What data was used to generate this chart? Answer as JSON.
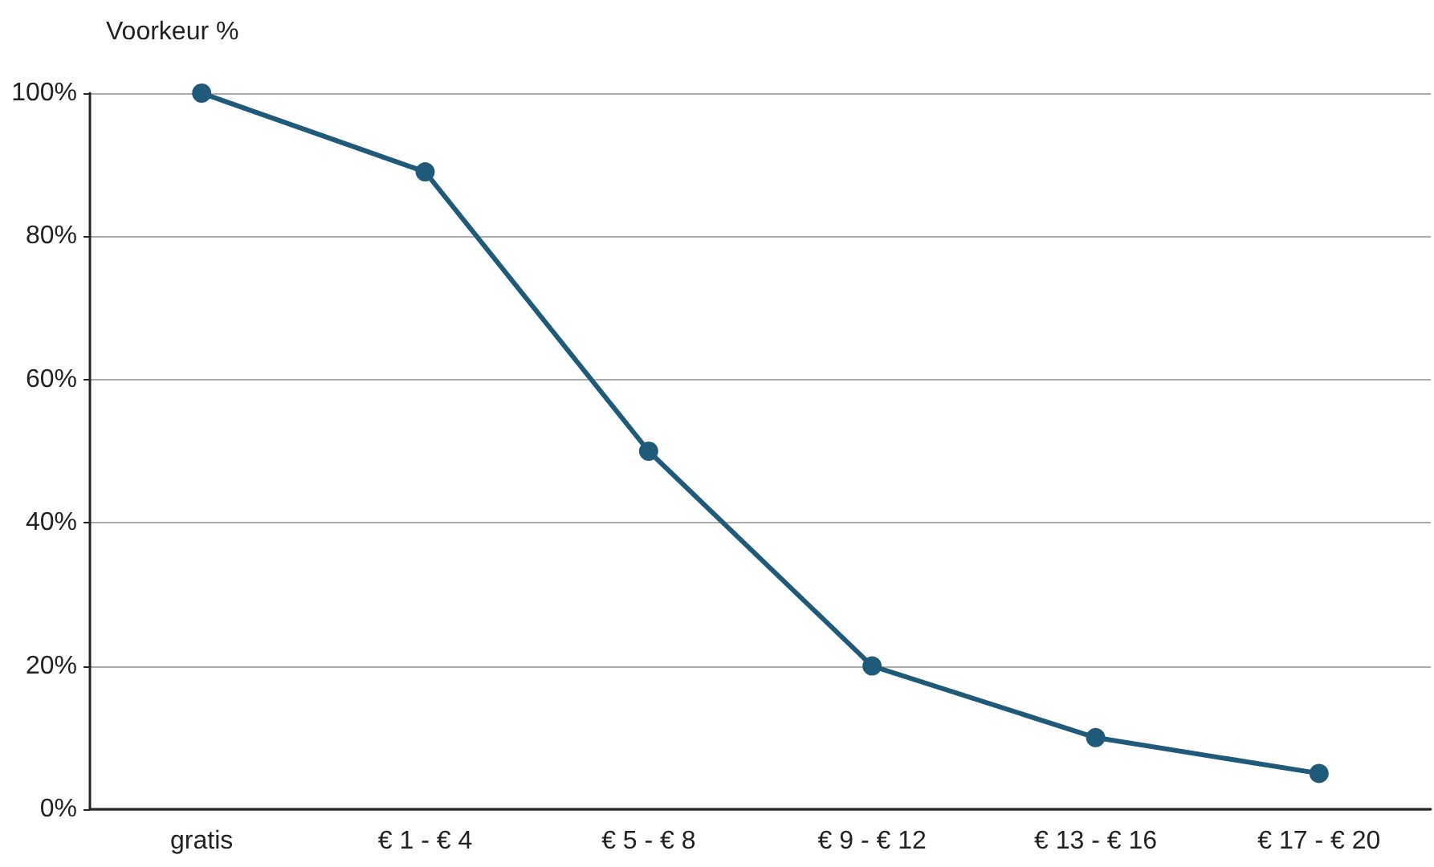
{
  "chart_data": {
    "type": "line",
    "ylabel": "Voorkeur %",
    "categories": [
      "gratis",
      "€ 1 - € 4",
      "€ 5 - € 8",
      "€ 9 - € 12",
      "€ 13 - € 16",
      "€ 17 - € 20"
    ],
    "series": [
      {
        "color": "#1f5a7a",
        "values": [
          100,
          89,
          50,
          20,
          10,
          5
        ]
      }
    ],
    "ylim": [
      0,
      100
    ],
    "yticks": [
      {
        "value": 0,
        "label": "0%"
      },
      {
        "value": 20,
        "label": "20%"
      },
      {
        "value": 40,
        "label": "40%"
      },
      {
        "value": 60,
        "label": "60%"
      },
      {
        "value": 80,
        "label": "80%"
      },
      {
        "value": 100,
        "label": "100%"
      }
    ],
    "grid": "y",
    "marker": "circle",
    "line_style": "solid"
  }
}
